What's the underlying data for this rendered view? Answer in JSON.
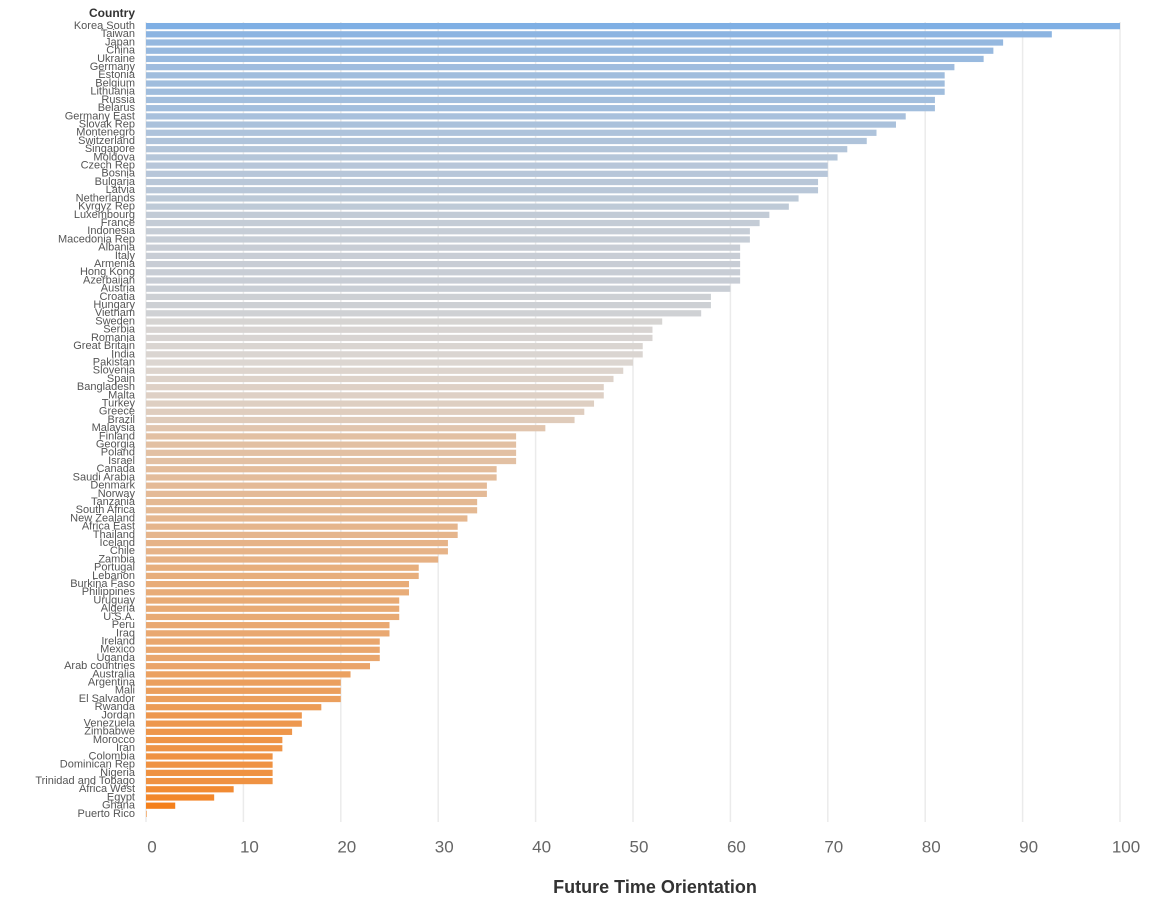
{
  "chart_data": {
    "type": "hbar",
    "y_axis_title": "Country",
    "x_axis_title": "Future Time Orientation",
    "categories": [
      "Korea South",
      "Taiwan",
      "Japan",
      "China",
      "Ukraine",
      "Germany",
      "Estonia",
      "Belgium",
      "Lithuania",
      "Russia",
      "Belarus",
      "Germany East",
      "Slovak Rep",
      "Montenegro",
      "Switzerland",
      "Singapore",
      "Moldova",
      "Czech Rep",
      "Bosnia",
      "Bulgaria",
      "Latvia",
      "Netherlands",
      "Kyrgyz Rep",
      "Luxembourg",
      "France",
      "Indonesia",
      "Macedonia Rep",
      "Albania",
      "Italy",
      "Armenia",
      "Hong Kong",
      "Azerbaijan",
      "Austria",
      "Croatia",
      "Hungary",
      "Vietnam",
      "Sweden",
      "Serbia",
      "Romania",
      "Great Britain",
      "India",
      "Pakistan",
      "Slovenia",
      "Spain",
      "Bangladesh",
      "Malta",
      "Turkey",
      "Greece",
      "Brazil",
      "Malaysia",
      "Finland",
      "Georgia",
      "Poland",
      "Israel",
      "Canada",
      "Saudi Arabia",
      "Denmark",
      "Norway",
      "Tanzania",
      "South Africa",
      "New Zealand",
      "Africa East",
      "Thailand",
      "Iceland",
      "Chile",
      "Zambia",
      "Portugal",
      "Lebanon",
      "Burkina Faso",
      "Philippines",
      "Uruguay",
      "Algeria",
      "U.S.A.",
      "Peru",
      "Iraq",
      "Ireland",
      "Mexico",
      "Uganda",
      "Arab countries",
      "Australia",
      "Argentina",
      "Mali",
      "El Salvador",
      "Rwanda",
      "Jordan",
      "Venezuela",
      "Zimbabwe",
      "Morocco",
      "Iran",
      "Colombia",
      "Dominican Rep",
      "Nigeria",
      "Trinidad and Tobago",
      "Africa West",
      "Egypt",
      "Ghana",
      "Puerto Rico"
    ],
    "values": [
      100,
      93,
      88,
      87,
      86,
      83,
      82,
      82,
      82,
      81,
      81,
      78,
      77,
      75,
      74,
      72,
      71,
      70,
      70,
      69,
      69,
      67,
      66,
      64,
      63,
      62,
      62,
      61,
      61,
      61,
      61,
      61,
      60,
      58,
      58,
      57,
      53,
      52,
      52,
      51,
      51,
      50,
      49,
      48,
      47,
      47,
      46,
      45,
      44,
      41,
      38,
      38,
      38,
      38,
      36,
      36,
      35,
      35,
      34,
      34,
      33,
      32,
      32,
      31,
      31,
      30,
      28,
      28,
      27,
      27,
      26,
      26,
      26,
      25,
      25,
      24,
      24,
      24,
      23,
      21,
      20,
      20,
      20,
      18,
      16,
      16,
      15,
      14,
      14,
      13,
      13,
      13,
      13,
      9,
      7,
      3,
      0
    ],
    "colors": {
      "low": "#f57a10",
      "mid": "#dcd6d1",
      "high": "#7fafe4"
    },
    "xlim": [
      0,
      100
    ],
    "xticks": [
      0,
      10,
      20,
      30,
      40,
      50,
      60,
      70,
      80,
      90,
      100
    ],
    "grid": true
  }
}
